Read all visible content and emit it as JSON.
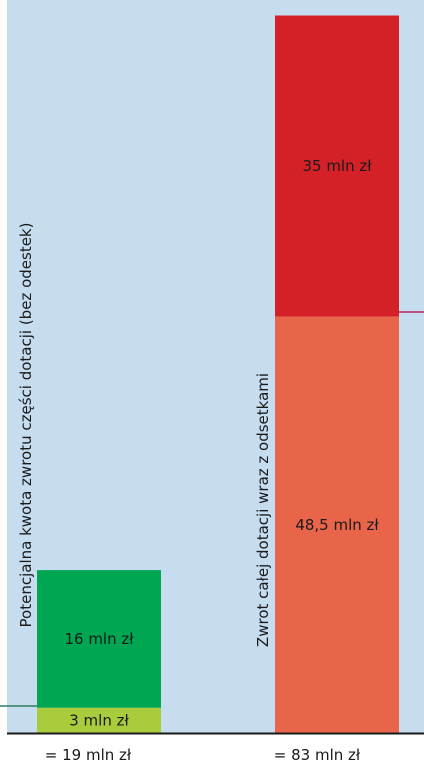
{
  "colors": {
    "background": "#c6dcef",
    "baseline": "#1a1a1a",
    "marker_left": "#2e7d5b",
    "marker_right": "#b8285a"
  },
  "chart_data": {
    "type": "bar",
    "stacked": true,
    "ylim": [
      0,
      85
    ],
    "categories": [
      "Potencjalna kwota zwrotu części dotacji (bez odestek)",
      "Zwrot całej dotacji wraz z odsetkami"
    ],
    "totals": [
      "= 19 mln zł",
      "= 83 mln zł"
    ],
    "bars": [
      {
        "segments": [
          {
            "value": 3,
            "label": "3 mln zł",
            "color": "#a9cc3c"
          },
          {
            "value": 16,
            "label": "16 mln zł",
            "color": "#00a651"
          }
        ]
      },
      {
        "segments": [
          {
            "value": 48.5,
            "label": "48,5 mln zł",
            "color": "#e8654a"
          },
          {
            "value": 35,
            "label": "35 mln zł",
            "color": "#d42128"
          }
        ]
      }
    ]
  }
}
